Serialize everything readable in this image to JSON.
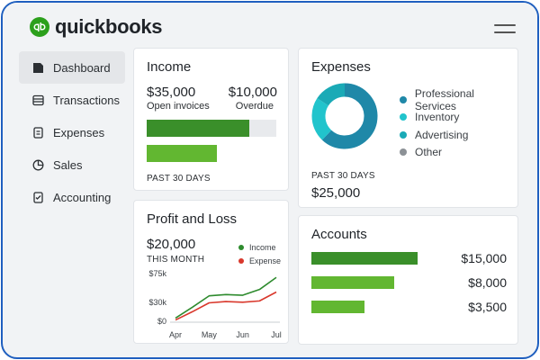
{
  "brand": {
    "name": "quickbooks",
    "accent": "#2ca01c"
  },
  "sidebar": {
    "items": [
      {
        "label": "Dashboard",
        "icon": "dashboard-icon",
        "active": true
      },
      {
        "label": "Transactions",
        "icon": "transactions-icon"
      },
      {
        "label": "Expenses",
        "icon": "expenses-icon"
      },
      {
        "label": "Sales",
        "icon": "sales-icon"
      },
      {
        "label": "Accounting",
        "icon": "accounting-icon"
      }
    ]
  },
  "income": {
    "title": "Income",
    "open_amount": "$35,000",
    "open_label": "Open invoices",
    "overdue_amount": "$10,000",
    "overdue_label": "Overdue",
    "period": "PAST 30 DAYS",
    "bars": [
      {
        "name": "open-invoices",
        "fraction": 0.79,
        "color": "#3a8f2a"
      },
      {
        "name": "overdue",
        "fraction": 0.54,
        "color": "#62b731"
      }
    ]
  },
  "expenses": {
    "title": "Expenses",
    "period": "PAST 30 DAYS",
    "total": "$25,000",
    "legend": [
      {
        "label": "Professional Services",
        "color": "#1f88a8",
        "share": 0.62
      },
      {
        "label": "Inventory",
        "color": "#21c4cc",
        "share": 0.22
      },
      {
        "label": "Advertising",
        "color": "#1aaab6",
        "share": 0.16
      },
      {
        "label": "Other",
        "color": "#8c9196",
        "share": 0.0
      }
    ]
  },
  "profit_loss": {
    "title": "Profit and Loss",
    "amount": "$20,000",
    "period": "THIS MONTH",
    "legend": [
      {
        "label": "Income",
        "color": "#2e8b2e"
      },
      {
        "label": "Expense",
        "color": "#d9382c"
      }
    ]
  },
  "accounts": {
    "title": "Accounts",
    "rows": [
      {
        "value_label": "$15,000",
        "fraction": 1.0,
        "color": "#3a8f2a"
      },
      {
        "value_label": "$8,000",
        "fraction": 0.78,
        "color": "#62b731"
      },
      {
        "value_label": "$3,500",
        "fraction": 0.5,
        "color": "#62b731"
      }
    ]
  },
  "chart_data": {
    "type": "line",
    "categories": [
      "Apr",
      "May",
      "Jun",
      "Jul"
    ],
    "x": [
      "Apr",
      "",
      "May",
      "",
      "Jun",
      "",
      "Jul"
    ],
    "series": [
      {
        "name": "Income",
        "color": "#2e8b2e",
        "values": [
          5,
          22,
          40,
          42,
          41,
          50,
          69
        ]
      },
      {
        "name": "Expense",
        "color": "#d9382c",
        "values": [
          2,
          15,
          29,
          31,
          30,
          32,
          46
        ]
      }
    ],
    "yticks": [
      "$75k",
      "$30k",
      "$0"
    ],
    "ytick_values": [
      75,
      30,
      0
    ],
    "ylim": [
      0,
      75
    ]
  }
}
